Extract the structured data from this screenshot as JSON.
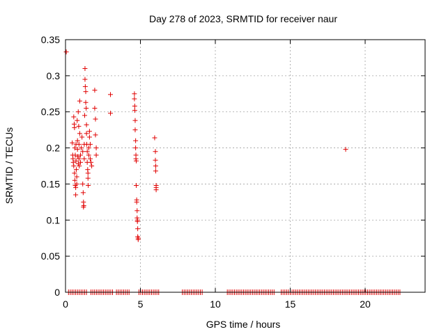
{
  "chart_data": {
    "type": "scatter",
    "title": "Day 278 of 2023, SRMTID for receiver naur",
    "xlabel": "GPS time / hours",
    "ylabel": "SRMTID / TECUs",
    "xlim": [
      0,
      24
    ],
    "ylim": [
      0,
      0.35
    ],
    "xticks": [
      0,
      5,
      10,
      15,
      20
    ],
    "yticks": [
      0,
      0.05,
      0.1,
      0.15,
      0.2,
      0.25,
      0.3,
      0.35
    ],
    "xtick_labels": [
      "0",
      "5",
      "10",
      "15",
      "20"
    ],
    "ytick_labels": [
      "0",
      "0.05",
      "0.1",
      "0.15",
      "0.2",
      "0.25",
      "0.3",
      "0.35"
    ],
    "grid": true,
    "marker": "+",
    "color": "#e00000",
    "series": [
      {
        "name": "SRMTID",
        "points": [
          [
            0.05,
            0.333
          ],
          [
            0.45,
            0.207
          ],
          [
            0.48,
            0.19
          ],
          [
            0.5,
            0.185
          ],
          [
            0.52,
            0.18
          ],
          [
            0.55,
            0.175
          ],
          [
            0.55,
            0.243
          ],
          [
            0.58,
            0.233
          ],
          [
            0.6,
            0.165
          ],
          [
            0.6,
            0.228
          ],
          [
            0.62,
            0.2
          ],
          [
            0.62,
            0.155
          ],
          [
            0.65,
            0.19
          ],
          [
            0.65,
            0.148
          ],
          [
            0.68,
            0.145
          ],
          [
            0.68,
            0.135
          ],
          [
            0.7,
            0.205
          ],
          [
            0.7,
            0.182
          ],
          [
            0.72,
            0.17
          ],
          [
            0.75,
            0.16
          ],
          [
            0.75,
            0.15
          ],
          [
            0.78,
            0.238
          ],
          [
            0.8,
            0.21
          ],
          [
            0.8,
            0.198
          ],
          [
            0.82,
            0.188
          ],
          [
            0.85,
            0.178
          ],
          [
            0.85,
            0.25
          ],
          [
            0.88,
            0.23
          ],
          [
            0.9,
            0.205
          ],
          [
            0.9,
            0.185
          ],
          [
            0.92,
            0.175
          ],
          [
            0.95,
            0.265
          ],
          [
            0.95,
            0.22
          ],
          [
            1.0,
            0.19
          ],
          [
            1.0,
            0.18
          ],
          [
            1.05,
            0.2
          ],
          [
            1.1,
            0.215
          ],
          [
            1.15,
            0.195
          ],
          [
            1.15,
            0.15
          ],
          [
            1.18,
            0.138
          ],
          [
            1.2,
            0.125
          ],
          [
            1.2,
            0.118
          ],
          [
            1.22,
            0.12
          ],
          [
            1.25,
            0.205
          ],
          [
            1.25,
            0.185
          ],
          [
            1.28,
            0.245
          ],
          [
            1.3,
            0.31
          ],
          [
            1.3,
            0.295
          ],
          [
            1.32,
            0.285
          ],
          [
            1.35,
            0.278
          ],
          [
            1.35,
            0.263
          ],
          [
            1.38,
            0.255
          ],
          [
            1.4,
            0.232
          ],
          [
            1.4,
            0.22
          ],
          [
            1.42,
            0.205
          ],
          [
            1.45,
            0.195
          ],
          [
            1.45,
            0.18
          ],
          [
            1.48,
            0.17
          ],
          [
            1.5,
            0.165
          ],
          [
            1.5,
            0.158
          ],
          [
            1.52,
            0.148
          ],
          [
            1.55,
            0.2
          ],
          [
            1.55,
            0.19
          ],
          [
            1.6,
            0.215
          ],
          [
            1.6,
            0.223
          ],
          [
            1.65,
            0.205
          ],
          [
            1.65,
            0.185
          ],
          [
            1.7,
            0.18
          ],
          [
            1.75,
            0.175
          ],
          [
            1.95,
            0.28
          ],
          [
            1.95,
            0.255
          ],
          [
            2.0,
            0.24
          ],
          [
            2.0,
            0.218
          ],
          [
            2.05,
            0.2
          ],
          [
            2.05,
            0.19
          ],
          [
            3.0,
            0.274
          ],
          [
            3.0,
            0.248
          ],
          [
            4.6,
            0.275
          ],
          [
            4.6,
            0.268
          ],
          [
            4.62,
            0.258
          ],
          [
            4.62,
            0.252
          ],
          [
            4.65,
            0.238
          ],
          [
            4.65,
            0.225
          ],
          [
            4.68,
            0.21
          ],
          [
            4.68,
            0.2
          ],
          [
            4.7,
            0.19
          ],
          [
            4.7,
            0.185
          ],
          [
            4.72,
            0.182
          ],
          [
            4.72,
            0.148
          ],
          [
            4.75,
            0.128
          ],
          [
            4.75,
            0.125
          ],
          [
            4.78,
            0.113
          ],
          [
            4.78,
            0.103
          ],
          [
            4.8,
            0.1
          ],
          [
            4.8,
            0.098
          ],
          [
            4.82,
            0.088
          ],
          [
            4.82,
            0.077
          ],
          [
            4.85,
            0.075
          ],
          [
            4.85,
            0.073
          ],
          [
            5.95,
            0.214
          ],
          [
            6.0,
            0.195
          ],
          [
            6.0,
            0.183
          ],
          [
            6.02,
            0.175
          ],
          [
            6.02,
            0.168
          ],
          [
            6.05,
            0.148
          ],
          [
            6.05,
            0.145
          ],
          [
            6.05,
            0.142
          ],
          [
            18.7,
            0.198
          ]
        ]
      }
    ],
    "zero_line_segments": [
      [
        0.2,
        1.5
      ],
      [
        1.7,
        3.2
      ],
      [
        3.4,
        4.3
      ],
      [
        4.9,
        6.3
      ],
      [
        7.8,
        9.2
      ],
      [
        10.8,
        14.0
      ],
      [
        14.4,
        22.4
      ]
    ]
  }
}
